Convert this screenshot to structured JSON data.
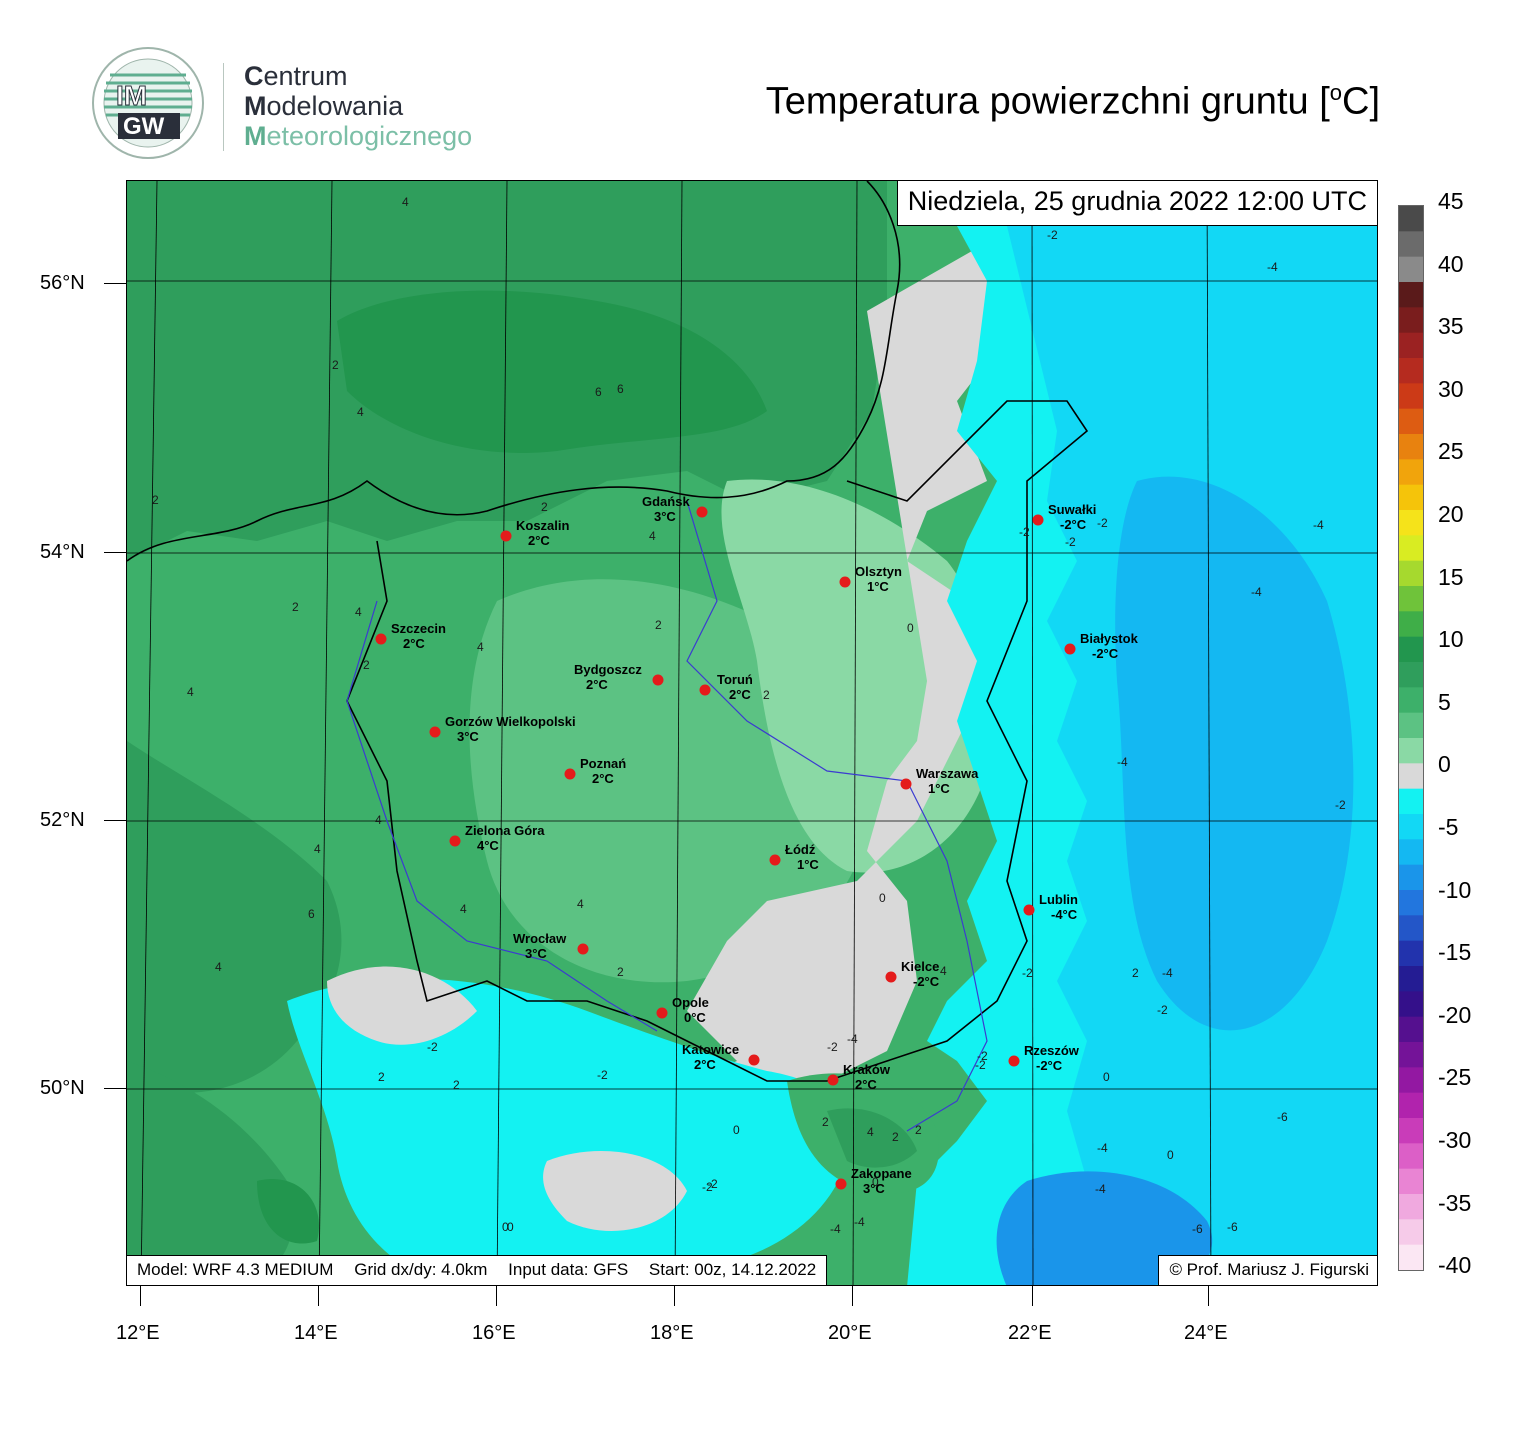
{
  "logo": {
    "badge_text_top": "IM",
    "badge_text_bottom": "GW",
    "line1_cap": "C",
    "line1_rest": "entrum",
    "line2_cap": "M",
    "line2_rest": "odelowania",
    "line3_cap": "M",
    "line3_rest": "eteorologicznego"
  },
  "title": {
    "main": "Temperatura powierzchni gruntu [",
    "sup": "o",
    "unit": "C]"
  },
  "date_label": "Niedziela, 25 grudnia 2022 12:00 UTC",
  "footer": {
    "model": "Model: WRF 4.3 MEDIUM",
    "grid": "Grid dx/dy: 4.0km",
    "input": "Input data: GFS",
    "start": "Start: 00z, 14.12.2022",
    "credit": "© Prof. Mariusz J. Figurski"
  },
  "axes": {
    "lat_labels": [
      "56°N",
      "54°N",
      "52°N",
      "50°N"
    ],
    "lon_labels": [
      "12°E",
      "14°E",
      "16°E",
      "18°E",
      "20°E",
      "22°E",
      "24°E"
    ]
  },
  "colorbar": {
    "labels": [
      "45",
      "40",
      "35",
      "30",
      "25",
      "20",
      "15",
      "10",
      "5",
      "0",
      "-5",
      "-10",
      "-15",
      "-20",
      "-25",
      "-30",
      "-35",
      "-40"
    ],
    "colors": [
      "#4a4a4a",
      "#6b6b6b",
      "#8a8a8a",
      "#5a1a1a",
      "#7a1d1d",
      "#9b2222",
      "#b52b1f",
      "#cc3a17",
      "#dd5c12",
      "#e8820f",
      "#f1a40c",
      "#f5c40a",
      "#f5e31a",
      "#d9ec22",
      "#a6d92e",
      "#6fc33a",
      "#3fae48",
      "#22964e",
      "#2f9e5c",
      "#3db06a",
      "#5cc283",
      "#8ad9a5",
      "#d9d9d9",
      "#13f2f2",
      "#12d8f5",
      "#14b8f2",
      "#1a95ea",
      "#2276de",
      "#2356c8",
      "#2233ad",
      "#241c93",
      "#34108a",
      "#55108f",
      "#741398",
      "#9318a2",
      "#b123ad",
      "#c93cb9",
      "#dc5fc7",
      "#e984d3",
      "#f0a9df",
      "#f6cbe9",
      "#fbe7f3"
    ]
  },
  "cities": [
    {
      "name": "Gdańsk",
      "temp": "3°C"
    },
    {
      "name": "Koszalin",
      "temp": "2°C"
    },
    {
      "name": "Suwałki",
      "temp": "-2°C"
    },
    {
      "name": "Olsztyn",
      "temp": "1°C"
    },
    {
      "name": "Szczecin",
      "temp": "2°C"
    },
    {
      "name": "Białystok",
      "temp": "-2°C"
    },
    {
      "name": "Bydgoszcz",
      "temp": "2°C"
    },
    {
      "name": "Toruń",
      "temp": "2°C"
    },
    {
      "name": "Gorzów Wielkopolski",
      "temp": "3°C"
    },
    {
      "name": "Poznań",
      "temp": "2°C"
    },
    {
      "name": "Warszawa",
      "temp": "1°C"
    },
    {
      "name": "Zielona Góra",
      "temp": "4°C"
    },
    {
      "name": "Łódź",
      "temp": "1°C"
    },
    {
      "name": "Lublin",
      "temp": "-4°C"
    },
    {
      "name": "Wrocław",
      "temp": "3°C"
    },
    {
      "name": "Kielce",
      "temp": "-2°C"
    },
    {
      "name": "Opole",
      "temp": "0°C"
    },
    {
      "name": "Katowice",
      "temp": "2°C"
    },
    {
      "name": "Rzeszów",
      "temp": "-2°C"
    },
    {
      "name": "Kraków",
      "temp": "2°C"
    },
    {
      "name": "Zakopane",
      "temp": "3°C"
    }
  ],
  "contour_labels": [
    "4",
    "6",
    "4",
    "2",
    "2",
    "6",
    "4",
    "4",
    "4",
    "2",
    "2",
    "2",
    "4",
    "2",
    "4",
    "4",
    "4",
    "6",
    "4",
    "4",
    "2",
    "0",
    "2",
    "2",
    "0",
    "2",
    "-2",
    "-2",
    "-4",
    "-2",
    "-2",
    "-4",
    "-4",
    "-2",
    "-4",
    "-2",
    "0",
    "-2",
    "-4",
    "-2",
    "0",
    "-4",
    "-6",
    "0",
    "-4",
    "-6",
    "-2",
    "-4",
    "-6",
    "-2",
    "2",
    "4",
    "2",
    "0",
    "-2",
    "-4",
    "-2",
    "0",
    "-4",
    "-2",
    "-2",
    "2",
    "0",
    "4",
    "2"
  ]
}
